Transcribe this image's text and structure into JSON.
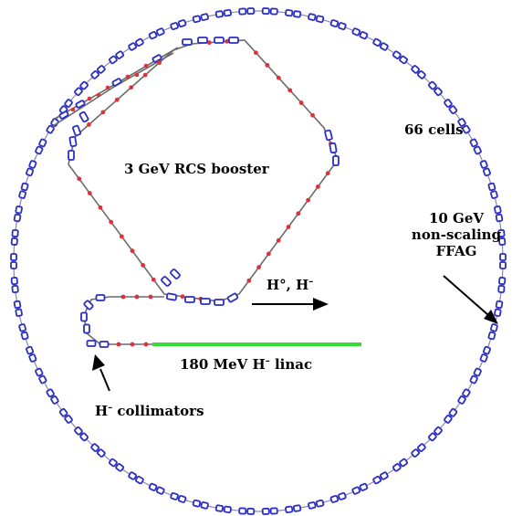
{
  "labels": {
    "cells": "66 cells",
    "rcs": "3 GeV RCS booster",
    "ffag_line1": "10 GeV",
    "ffag_line2": "non-scaling",
    "ffag_line3": "FFAG",
    "beam_h": "H°, H",
    "beam_minus": "–",
    "linac_pre": "180 MeV H",
    "linac_minus": "–",
    "linac_post": " linac",
    "coll_h": "H",
    "coll_minus": "–",
    "coll_post": " collimators"
  },
  "ffag": {
    "cell_count": 66
  },
  "colors": {
    "magnet_outline": "#2b2fc2",
    "corrector": "#e0303a",
    "beam_pipe": "#6b6b6b",
    "linac": "#33dd33",
    "arrow": "#000000"
  }
}
